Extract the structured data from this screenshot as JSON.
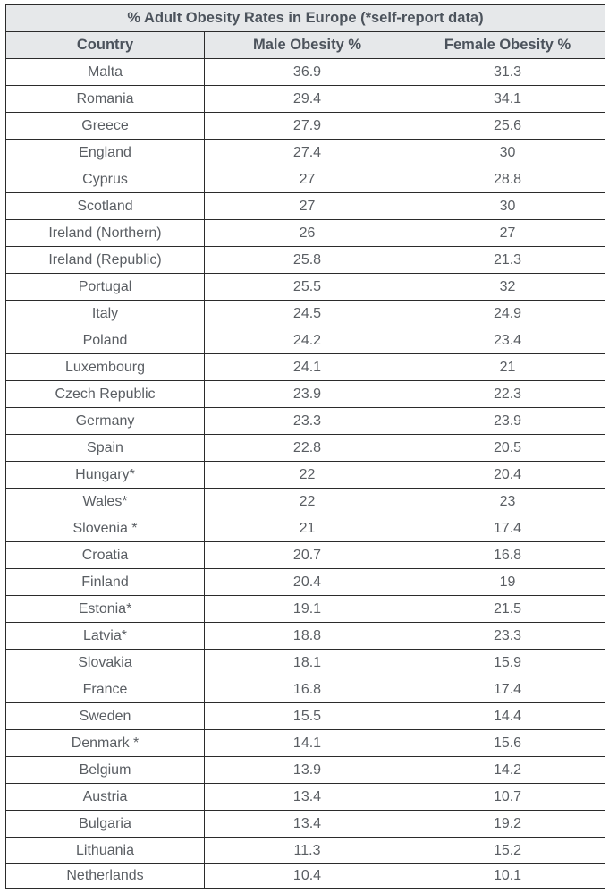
{
  "table": {
    "title": "% Adult Obesity Rates in Europe (*self-report data)",
    "headers": [
      "Country",
      "Male Obesity %",
      "Female Obesity %"
    ],
    "rows": [
      [
        "Malta",
        "36.9",
        "31.3"
      ],
      [
        "Romania",
        "29.4",
        "34.1"
      ],
      [
        "Greece",
        "27.9",
        "25.6"
      ],
      [
        "England",
        "27.4",
        "30"
      ],
      [
        "Cyprus",
        "27",
        "28.8"
      ],
      [
        "Scotland",
        "27",
        "30"
      ],
      [
        "Ireland (Northern)",
        "26",
        "27"
      ],
      [
        "Ireland (Republic)",
        "25.8",
        "21.3"
      ],
      [
        "Portugal",
        "25.5",
        "32"
      ],
      [
        "Italy",
        "24.5",
        "24.9"
      ],
      [
        "Poland",
        "24.2",
        "23.4"
      ],
      [
        "Luxembourg",
        "24.1",
        "21"
      ],
      [
        "Czech Republic",
        "23.9",
        "22.3"
      ],
      [
        "Germany",
        "23.3",
        "23.9"
      ],
      [
        "Spain",
        "22.8",
        "20.5"
      ],
      [
        "Hungary*",
        "22",
        "20.4"
      ],
      [
        "Wales*",
        "22",
        "23"
      ],
      [
        "Slovenia *",
        "21",
        "17.4"
      ],
      [
        "Croatia",
        "20.7",
        "16.8"
      ],
      [
        "Finland",
        "20.4",
        "19"
      ],
      [
        "Estonia*",
        "19.1",
        "21.5"
      ],
      [
        "Latvia*",
        "18.8",
        "23.3"
      ],
      [
        "Slovakia",
        "18.1",
        "15.9"
      ],
      [
        "France",
        "16.8",
        "17.4"
      ],
      [
        "Sweden",
        "15.5",
        "14.4"
      ],
      [
        "Denmark *",
        "14.1",
        "15.6"
      ],
      [
        "Belgium",
        "13.9",
        "14.2"
      ],
      [
        "Austria",
        "13.4",
        "10.7"
      ],
      [
        "Bulgaria",
        "13.4",
        "19.2"
      ],
      [
        "Lithuania",
        "11.3",
        "15.2"
      ],
      [
        "Netherlands",
        "10.4",
        "10.1"
      ]
    ]
  },
  "colors": {
    "header_bg": "#e6e8ea",
    "header_text": "#4c535c",
    "body_text": "#5a5e63",
    "border": "#2b2b2b"
  }
}
